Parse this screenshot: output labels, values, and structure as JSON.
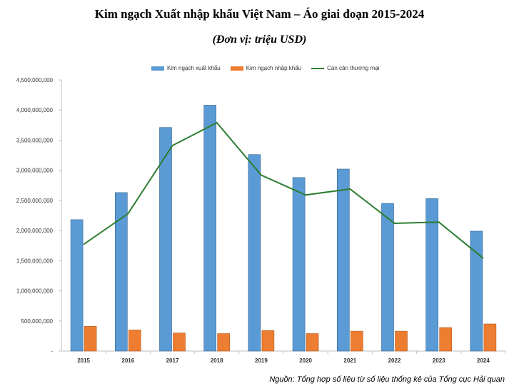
{
  "chart_data": {
    "type": "bar",
    "title": "Kim ngạch Xuất nhập khẩu Việt Nam – Áo giai đoạn 2015-2024",
    "subtitle": "(Đơn vị: triệu USD)",
    "categories": [
      "2015",
      "2016",
      "2017",
      "2018",
      "2019",
      "2020",
      "2021",
      "2022",
      "2023",
      "2024"
    ],
    "series": [
      {
        "name": "Kim ngạch xuất khẩu",
        "type": "bar",
        "color": "#5b9bd5",
        "values": [
          2180000000,
          2630000000,
          3710000000,
          4080000000,
          3260000000,
          2880000000,
          3020000000,
          2450000000,
          2530000000,
          1990000000
        ]
      },
      {
        "name": "Kim ngạch nhập khẩu",
        "type": "bar",
        "color": "#ed7d31",
        "values": [
          410000000,
          350000000,
          300000000,
          290000000,
          340000000,
          290000000,
          330000000,
          330000000,
          390000000,
          450000000
        ]
      },
      {
        "name": "Cán cân thương mại",
        "type": "line",
        "color": "#2e7d32",
        "values": [
          1770000000,
          2280000000,
          3410000000,
          3790000000,
          2920000000,
          2590000000,
          2690000000,
          2120000000,
          2140000000,
          1540000000
        ]
      }
    ],
    "ylim": [
      0,
      4500000000
    ],
    "yticks": [
      0,
      500000000,
      1000000000,
      1500000000,
      2000000000,
      2500000000,
      3000000000,
      3500000000,
      4000000000,
      4500000000
    ],
    "ytick_labels": [
      "-",
      "500,000,000",
      "1,000,000,000",
      "1,500,000,000",
      "2,000,000,000",
      "2,500,000,000",
      "3,000,000,000",
      "3,500,000,000",
      "4,000,000,000",
      "4,500,000,000"
    ],
    "grid": false,
    "legend_position": "top"
  },
  "source_note": "Nguồn: Tổng hợp số liệu từ số liệu thống kê của Tổng cục Hải quan"
}
